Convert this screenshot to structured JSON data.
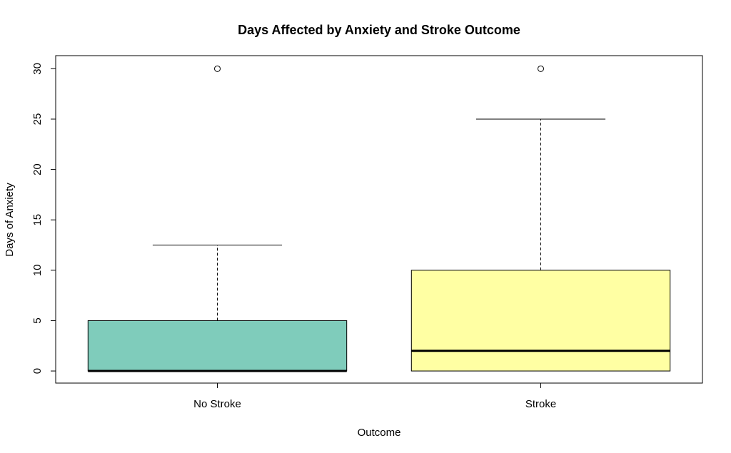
{
  "chart_data": {
    "type": "box",
    "title": "Days Affected by Anxiety and Stroke Outcome",
    "xlabel": "Outcome",
    "ylabel": "Days of Anxiety",
    "categories": [
      "No Stroke",
      "Stroke"
    ],
    "ylim": [
      -1.2,
      31.3
    ],
    "yticks": [
      0,
      5,
      10,
      15,
      20,
      25,
      30
    ],
    "ytick_labels": [
      "0",
      "5",
      "10",
      "15",
      "20",
      "25",
      "30"
    ],
    "grid": false,
    "legend": "none",
    "boxes": [
      {
        "category": "No Stroke",
        "whisker_low": 0,
        "q1": 0,
        "median": 0,
        "q3": 5,
        "whisker_high": 12.5,
        "outliers": [
          30
        ],
        "color": "#7fccbb"
      },
      {
        "category": "Stroke",
        "whisker_low": 0,
        "q1": 0,
        "median": 2,
        "q3": 10,
        "whisker_high": 25,
        "outliers": [
          30
        ],
        "color": "#ffffa3"
      }
    ]
  }
}
